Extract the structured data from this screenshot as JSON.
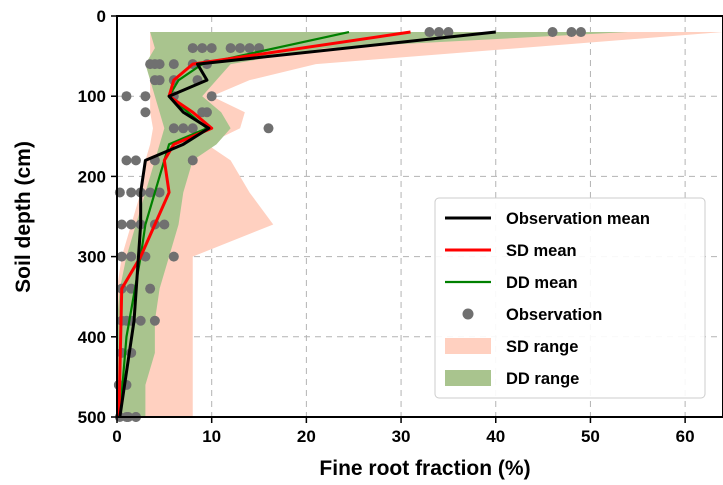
{
  "chart_data": {
    "type": "line",
    "xlabel": "Fine root fraction (%)",
    "ylabel": "Soil depth (cm)",
    "xlim": [
      0,
      64
    ],
    "ylim": [
      0,
      500
    ],
    "y_inverted": true,
    "xticks": [
      0,
      10,
      20,
      30,
      40,
      50,
      60
    ],
    "yticks": [
      0,
      100,
      200,
      300,
      400,
      500
    ],
    "grid": true,
    "legend_position": "lower-right",
    "colors": {
      "observation_mean": "#000000",
      "sd_mean": "#ff0000",
      "dd_mean": "#008000",
      "observation": "#707070",
      "sd_range": "#ffd0c0",
      "dd_range": "#a9c48e"
    },
    "legend": [
      "Observation mean",
      "SD mean",
      "DD mean",
      "Observation",
      "SD range",
      "DD range"
    ],
    "series": [
      {
        "name": "Observation mean",
        "kind": "line",
        "x": [
          40,
          8.5,
          9.5,
          5.5,
          7,
          9.7,
          7,
          3,
          2.5,
          2.5,
          1.8,
          0.3
        ],
        "y": [
          20,
          60,
          80,
          100,
          120,
          140,
          160,
          180,
          220,
          260,
          380,
          500
        ]
      },
      {
        "name": "SD mean",
        "kind": "line",
        "x": [
          31,
          8,
          6,
          5.5,
          8,
          10,
          6,
          5,
          5.5,
          4,
          2.5,
          0.5,
          0.2
        ],
        "y": [
          20,
          60,
          80,
          100,
          120,
          140,
          160,
          180,
          220,
          260,
          300,
          340,
          500
        ]
      },
      {
        "name": "DD mean",
        "kind": "line",
        "x": [
          24.5,
          9,
          6.5,
          5.5,
          7.5,
          9.5,
          5.5,
          5,
          4,
          3,
          2.5,
          1,
          0.3
        ],
        "y": [
          20,
          60,
          80,
          100,
          120,
          140,
          160,
          180,
          220,
          260,
          300,
          400,
          500
        ]
      },
      {
        "name": "Observation",
        "kind": "scatter",
        "x": [
          33,
          34,
          35,
          46,
          48,
          49,
          13,
          14,
          15,
          8,
          12,
          9,
          10,
          3.5,
          4,
          4.5,
          9.5,
          8,
          6,
          4,
          4.5,
          6,
          8.5,
          1,
          3,
          6,
          10,
          9.5,
          3,
          9,
          16,
          6,
          7,
          8,
          1,
          2,
          4,
          8,
          0.3,
          1.5,
          2.5,
          3.5,
          4.5,
          0.5,
          1.5,
          2.5,
          4,
          5,
          0.5,
          1.5,
          3,
          6,
          0.5,
          1.5,
          3.5,
          0.5,
          1.5,
          2.5,
          1,
          4,
          0.5,
          1.5,
          0.2,
          1,
          0.2,
          1,
          2,
          0.3,
          1.2,
          2
        ],
        "y": [
          20,
          20,
          20,
          20,
          20,
          20,
          40,
          40,
          40,
          40,
          40,
          40,
          40,
          60,
          60,
          60,
          60,
          60,
          60,
          80,
          80,
          80,
          80,
          100,
          100,
          100,
          100,
          120,
          120,
          120,
          140,
          140,
          140,
          140,
          180,
          180,
          180,
          180,
          220,
          220,
          220,
          220,
          220,
          260,
          260,
          260,
          260,
          260,
          300,
          300,
          300,
          300,
          340,
          340,
          340,
          380,
          380,
          380,
          380,
          380,
          420,
          420,
          460,
          460,
          460,
          500,
          500,
          500,
          500,
          500
        ]
      },
      {
        "name": "SD range",
        "kind": "band",
        "y": [
          20,
          60,
          80,
          100,
          120,
          140,
          160,
          180,
          220,
          260,
          300,
          340,
          380,
          420,
          460,
          500
        ],
        "xmin": [
          3.5,
          3.5,
          3.5,
          3.5,
          3.5,
          3.8,
          3.5,
          3,
          2.5,
          1.5,
          0.5,
          0,
          0,
          0,
          0,
          0
        ],
        "xmax": [
          64,
          21,
          14,
          10,
          13.5,
          13,
          9.5,
          12,
          14,
          16.5,
          8,
          8,
          8,
          8,
          8,
          8
        ]
      },
      {
        "name": "DD range",
        "kind": "band",
        "y": [
          20,
          40,
          60,
          80,
          100,
          120,
          140,
          160,
          180,
          220,
          260,
          300,
          340,
          380,
          420,
          460,
          500
        ],
        "xmin": [
          3.5,
          4,
          3,
          3.5,
          4,
          4.5,
          5,
          4.5,
          4,
          3,
          2,
          1,
          0.3,
          0,
          0,
          0,
          0
        ],
        "xmax": [
          54,
          22,
          12,
          10.5,
          9,
          11,
          12,
          10.5,
          8,
          7,
          6.5,
          5.5,
          4.5,
          4,
          4,
          3,
          3
        ]
      }
    ]
  }
}
